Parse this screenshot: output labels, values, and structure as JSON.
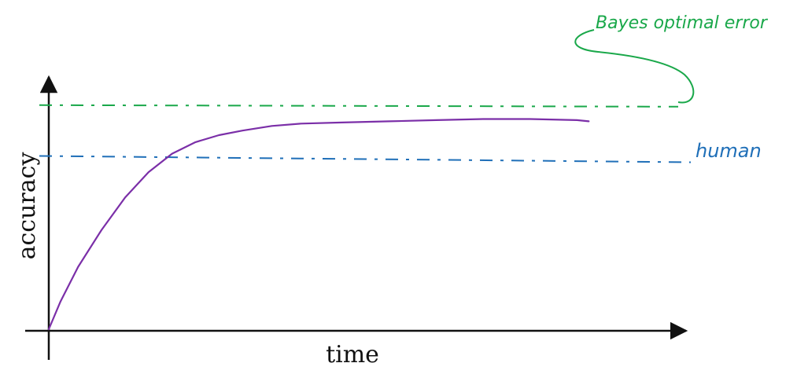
{
  "chart_data": {
    "type": "line",
    "xlabel": "time",
    "ylabel": "accuracy",
    "x_range": [
      0,
      100
    ],
    "y_range": [
      0,
      100
    ],
    "grid": false,
    "series": [
      {
        "name": "",
        "color": "#7b2fa8",
        "x": [
          0,
          2,
          5,
          9,
          13,
          17,
          21,
          25,
          29,
          33,
          38,
          43,
          50,
          58,
          66,
          74,
          82,
          90,
          92
        ],
        "y": [
          0,
          12,
          27,
          43,
          57,
          68,
          76,
          81,
          84,
          86,
          88,
          89,
          89.5,
          90,
          90.5,
          91,
          91,
          90.5,
          90
        ]
      }
    ],
    "reference_lines": [
      {
        "label": "Bayes optimal error",
        "y": 97,
        "color": "#1aa84a",
        "style": "dash-dot"
      },
      {
        "label": "human",
        "y": 75,
        "color": "#1f6fb8",
        "style": "dash-dot"
      }
    ]
  }
}
